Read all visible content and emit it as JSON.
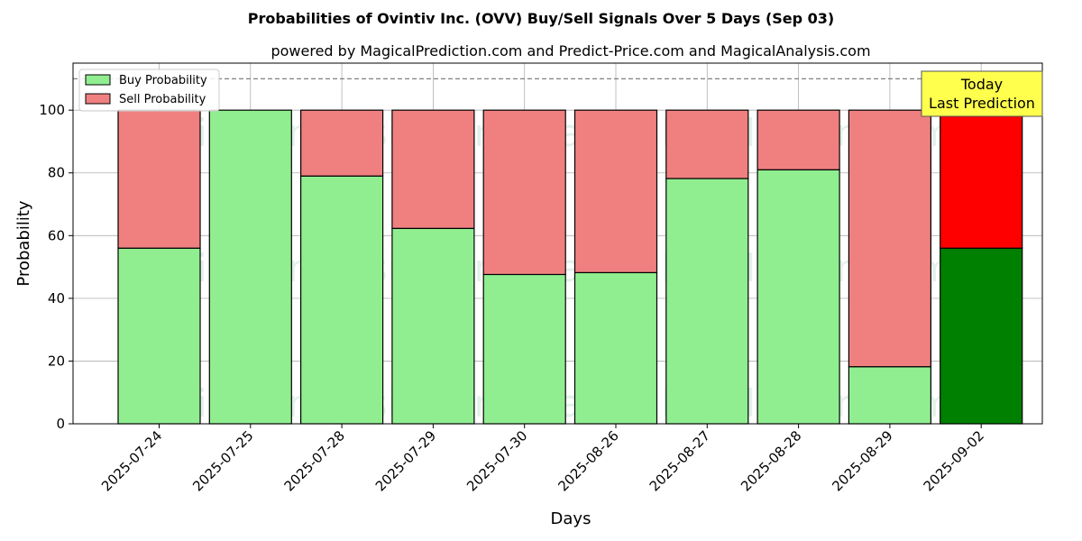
{
  "chart_data": {
    "type": "bar",
    "stacked": true,
    "title": "Probabilities of Ovintiv Inc. (OVV) Buy/Sell Signals Over 5 Days (Sep 03)",
    "subtitle": "powered by MagicalPrediction.com and Predict-Price.com and MagicalAnalysis.com",
    "xlabel": "Days",
    "ylabel": "Probability",
    "ylim": [
      0,
      115
    ],
    "yticks": [
      0,
      20,
      40,
      60,
      80,
      100
    ],
    "grid": true,
    "legend_position": "top-left",
    "categories": [
      "2025-07-24",
      "2025-07-25",
      "2025-07-28",
      "2025-07-29",
      "2025-07-30",
      "2025-08-26",
      "2025-08-27",
      "2025-08-28",
      "2025-08-29",
      "2025-09-02"
    ],
    "series": [
      {
        "name": "Buy Probability",
        "values": [
          56,
          100,
          79,
          62.3,
          47.6,
          48.2,
          78.2,
          81,
          18.2,
          56
        ],
        "color": "#90ee90",
        "highlight_color": "#008000"
      },
      {
        "name": "Sell Probability",
        "values": [
          44,
          0,
          21,
          37.7,
          52.4,
          51.8,
          21.8,
          19,
          81.8,
          44
        ],
        "color": "#f08080",
        "highlight_color": "#ff0000"
      }
    ],
    "highlight_index": 9,
    "reference_line": {
      "y": 110,
      "style": "dashed",
      "color": "#808080"
    },
    "annotation": {
      "lines": [
        "Today",
        "Last Prediction"
      ],
      "background": "#ffff4d"
    },
    "watermarks": [
      "MagicalAnalysis.com",
      "MagicalPrediction.com"
    ]
  }
}
